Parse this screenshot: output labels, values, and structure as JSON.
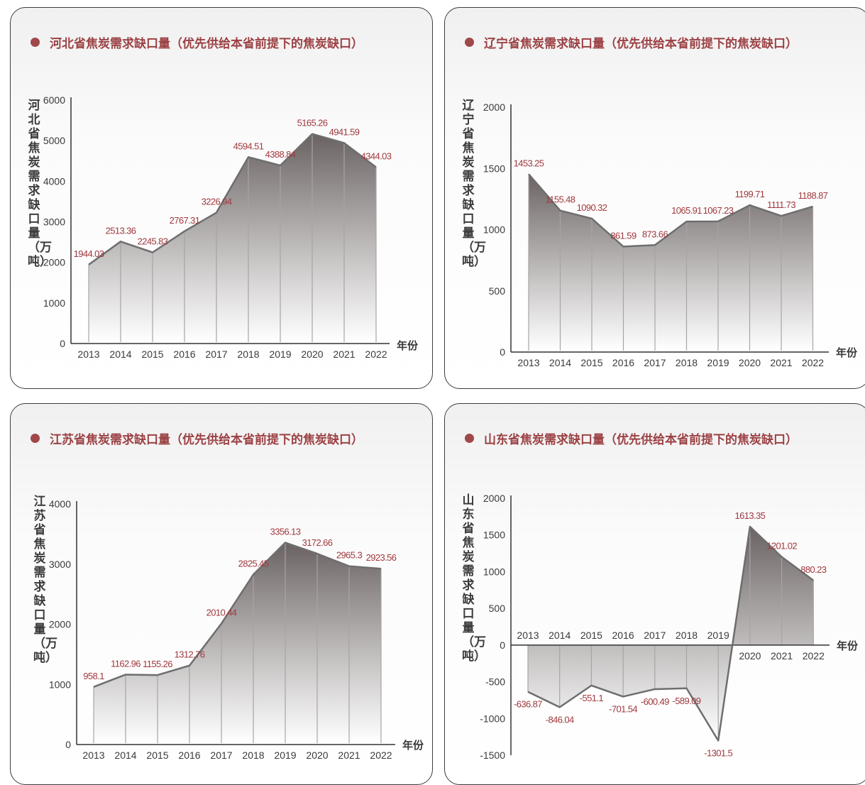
{
  "colors": {
    "title": "#9b4144",
    "data_label": "#a0393e",
    "line": "#6e6e6e",
    "fill_top": "#6a6262",
    "fill_bottom": "#ffffff",
    "axis": "#333333"
  },
  "panels": [
    {
      "title": "河北省焦炭需求缺口量（优先供给本省前提下的焦炭缺口）"
    },
    {
      "title": "辽宁省焦炭需求缺口量（优先供给本省前提下的焦炭缺口）"
    },
    {
      "title": "江苏省焦炭需求缺口量（优先供给本省前提下的焦炭缺口）"
    },
    {
      "title": "山东省焦炭需求缺口量（优先供给本省前提下的焦炭缺口）"
    }
  ],
  "chart_data": [
    {
      "type": "area",
      "title": "河北省焦炭需求缺口量（优先供给本省前提下的焦炭缺口）",
      "ylabel": "河北省焦炭需求缺口量（万吨）",
      "xlabel": "年份",
      "categories": [
        "2013",
        "2014",
        "2015",
        "2016",
        "2017",
        "2018",
        "2019",
        "2020",
        "2021",
        "2022"
      ],
      "values": [
        1944.03,
        2513.36,
        2245.83,
        2767.31,
        3226.94,
        4594.51,
        4388.84,
        5165.26,
        4941.59,
        4344.03
      ],
      "data_labels": [
        "1944.03",
        "2513.36",
        "2245.83",
        "2767.31",
        "3226.94",
        "4594.51",
        "4388.84",
        "5165.26",
        "4941.59",
        "4344.03"
      ],
      "yticks": [
        0,
        1000,
        2000,
        3000,
        4000,
        5000,
        6000
      ],
      "ylim": [
        0,
        6000
      ],
      "grid": false
    },
    {
      "type": "area",
      "title": "辽宁省焦炭需求缺口量（优先供给本省前提下的焦炭缺口）",
      "ylabel": "辽宁省焦炭需求缺口量（万吨）",
      "xlabel": "年份",
      "categories": [
        "2013",
        "2014",
        "2015",
        "2016",
        "2017",
        "2018",
        "2019",
        "2020",
        "2021",
        "2022"
      ],
      "values": [
        1453.25,
        1155.48,
        1090.32,
        861.59,
        873.66,
        1065.91,
        1067.23,
        1199.71,
        1111.73,
        1188.87
      ],
      "data_labels": [
        "1453.25",
        "1155.48",
        "1090.32",
        "861.59",
        "873.66",
        "1065.91",
        "1067.23",
        "1199.71",
        "1111.73",
        "1188.87"
      ],
      "yticks": [
        0,
        500,
        1000,
        1500,
        2000
      ],
      "ylim": [
        0,
        2000
      ],
      "grid": false
    },
    {
      "type": "area",
      "title": "江苏省焦炭需求缺口量（优先供给本省前提下的焦炭缺口）",
      "ylabel": "江苏省焦炭需求缺口量（万吨）",
      "xlabel": "年份",
      "categories": [
        "2013",
        "2014",
        "2015",
        "2016",
        "2017",
        "2018",
        "2019",
        "2020",
        "2021",
        "2022"
      ],
      "values": [
        958.1,
        1162.96,
        1155.26,
        1312.76,
        2010.44,
        2825.45,
        3356.13,
        3172.66,
        2965.3,
        2923.56
      ],
      "data_labels": [
        "958.1",
        "1162.96",
        "1155.26",
        "1312.76",
        "2010.44",
        "2825.45",
        "3356.13",
        "3172.66",
        "2965.3",
        "2923.56"
      ],
      "yticks": [
        0,
        1000,
        2000,
        3000,
        4000
      ],
      "ylim": [
        0,
        4000
      ],
      "grid": false
    },
    {
      "type": "area",
      "title": "山东省焦炭需求缺口量（优先供给本省前提下的焦炭缺口）",
      "ylabel": "山东省焦炭需求缺口量（万吨）",
      "xlabel": "年份",
      "categories": [
        "2013",
        "2014",
        "2015",
        "2016",
        "2017",
        "2018",
        "2019",
        "2020",
        "2021",
        "2022"
      ],
      "values": [
        -636.87,
        -846.04,
        -551.1,
        -701.54,
        -600.49,
        -589.09,
        -1301.5,
        1613.35,
        1201.02,
        880.23
      ],
      "data_labels": [
        "-636.87",
        "-846.04",
        "-551.1",
        "-701.54",
        "-600.49",
        "-589.09",
        "-1301.5",
        "1613.35",
        "1201.02",
        "880.23"
      ],
      "yticks": [
        -1500,
        -1000,
        -500,
        0,
        500,
        1000,
        1500,
        2000
      ],
      "ylim": [
        -1500,
        2000
      ],
      "grid": false
    }
  ]
}
